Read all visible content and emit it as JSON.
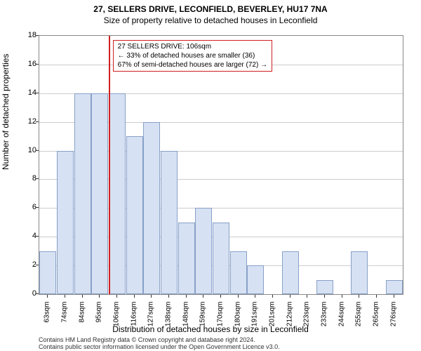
{
  "title": "27, SELLERS DRIVE, LECONFIELD, BEVERLEY, HU17 7NA",
  "subtitle": "Size of property relative to detached houses in Leconfield",
  "y_axis_label": "Number of detached properties",
  "x_axis_label": "Distribution of detached houses by size in Leconfield",
  "chart": {
    "type": "histogram",
    "categories": [
      "63sqm",
      "74sqm",
      "84sqm",
      "95sqm",
      "106sqm",
      "116sqm",
      "127sqm",
      "138sqm",
      "148sqm",
      "159sqm",
      "170sqm",
      "180sqm",
      "191sqm",
      "201sqm",
      "212sqm",
      "223sqm",
      "233sqm",
      "244sqm",
      "255sqm",
      "265sqm",
      "276sqm"
    ],
    "values": [
      3,
      10,
      14,
      14,
      14,
      11,
      12,
      10,
      5,
      6,
      5,
      3,
      2,
      0,
      3,
      0,
      1,
      0,
      3,
      0,
      1
    ],
    "bar_fill": "#d6e1f3",
    "bar_border": "#88a0c8",
    "background_color": "#ffffff",
    "grid_color": "#cccccc",
    "ylim": [
      0,
      18
    ],
    "ytick_step": 2,
    "marker": {
      "x_index": 4,
      "color": "#d02020",
      "width": 2
    },
    "annotation": {
      "lines": [
        "27 SELLERS DRIVE: 106sqm",
        "← 33% of detached houses are smaller (36)",
        "67% of semi-detached houses are larger (72) →"
      ],
      "border_color": "#d02020"
    }
  },
  "footer": {
    "line1": "Contains HM Land Registry data © Crown copyright and database right 2024.",
    "line2": "Contains public sector information licensed under the Open Government Licence v3.0."
  }
}
